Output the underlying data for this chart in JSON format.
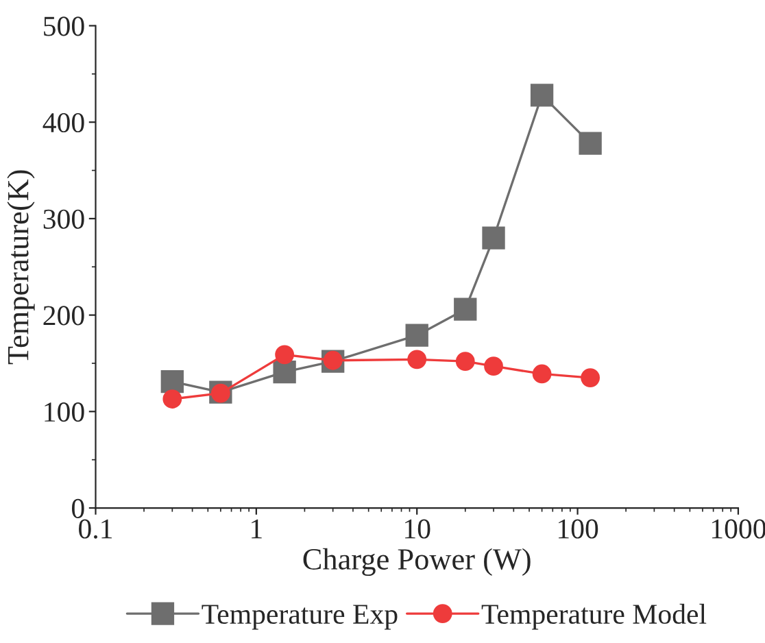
{
  "chart_data": {
    "type": "line",
    "xlabel": "Charge Power (W)",
    "ylabel": "Temperature(K)",
    "log": "x",
    "x": [
      0.3,
      0.6,
      1.5,
      3,
      10,
      20,
      30,
      60,
      120
    ],
    "series": [
      {
        "name": "Temperature Exp",
        "color": "#6e6e6e",
        "marker": "square",
        "values": [
          131,
          120,
          141,
          152,
          179,
          206,
          280,
          428,
          378
        ]
      },
      {
        "name": "Temperature Model",
        "color": "#ee3b3b",
        "marker": "circle",
        "values": [
          113,
          119,
          159,
          153,
          154,
          152,
          147,
          139,
          135
        ]
      }
    ],
    "xlim": [
      0.1,
      1000
    ],
    "xticks": [
      0.1,
      1,
      10,
      100,
      1000
    ],
    "ylim": [
      0,
      500
    ],
    "yticks": [
      0,
      100,
      200,
      300,
      400,
      500
    ],
    "grid": false,
    "legend": "bottom",
    "line_style": "solid"
  }
}
